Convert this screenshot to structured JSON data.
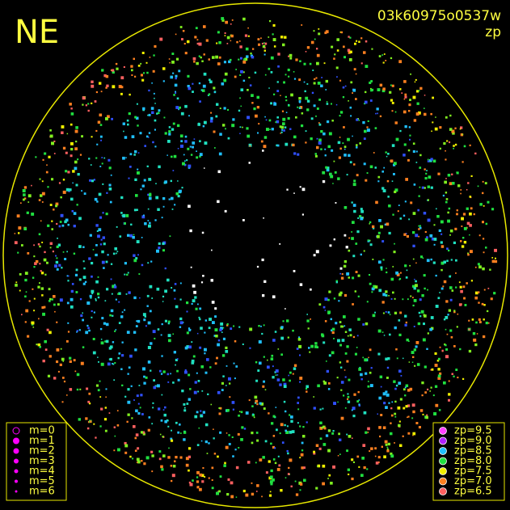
{
  "header": {
    "corner": "NE",
    "image_id": "03k60975o0537w",
    "quantity": "zp"
  },
  "magnitude_legend": [
    "m=0",
    "m=1",
    "m=2",
    "m=3",
    "m=4",
    "m=5",
    "m=6"
  ],
  "zp_legend": [
    {
      "label": "zp=9.5",
      "color": "#ff40ff"
    },
    {
      "label": "zp=9.0",
      "color": "#b020ff"
    },
    {
      "label": "zp=8.5",
      "color": "#20c0ff"
    },
    {
      "label": "zp=8.0",
      "color": "#20e040"
    },
    {
      "label": "zp=7.5",
      "color": "#f0f000"
    },
    {
      "label": "zp=7.0",
      "color": "#ff8020"
    },
    {
      "label": "zp=6.5",
      "color": "#ff6060"
    }
  ]
}
